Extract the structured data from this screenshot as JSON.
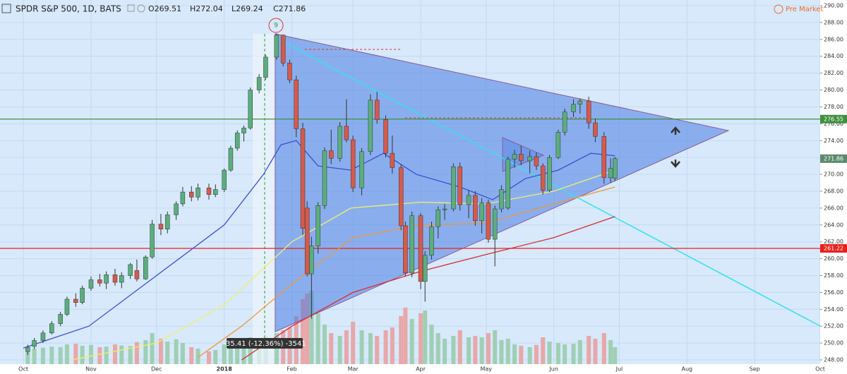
{
  "chart_data": {
    "type": "candlestick",
    "title": "SPDR S&P 500, 1D, BATS",
    "ohlc_labels": [
      "O269.51",
      "H272.04",
      "L269.24",
      "C271.86"
    ],
    "session": "Pre Market",
    "peak_marker": "9",
    "measure_label": "-35.41 (-12.36%) -3541",
    "up_color": "#5bae7e",
    "down_color": "#d75a4a",
    "volume_up_color": "#9fcfb4",
    "volume_down_color": "#e8a7a8",
    "volume_ylim": [
      0,
      400
    ],
    "grid": true,
    "xlim": [
      -10.7,
      365
    ],
    "xticks": [
      {
        "value": 0,
        "label": "Oct"
      },
      {
        "value": 31,
        "label": "Nov"
      },
      {
        "value": 61,
        "label": "Dec"
      },
      {
        "value": 92,
        "label": "2018"
      },
      {
        "value": 123,
        "label": "Feb"
      },
      {
        "value": 151,
        "label": "Mar"
      },
      {
        "value": 182,
        "label": "Apr"
      },
      {
        "value": 212,
        "label": "May"
      },
      {
        "value": 243,
        "label": "Jun"
      },
      {
        "value": 273,
        "label": "Jul"
      },
      {
        "value": 304,
        "label": "Aug"
      },
      {
        "value": 335,
        "label": "Sep"
      },
      {
        "value": 365,
        "label": "Oct"
      }
    ],
    "ylim": [
      247.5,
      290.67
    ],
    "yticks": [
      {
        "value": 248,
        "label": "248.00"
      },
      {
        "value": 250,
        "label": "250.00"
      },
      {
        "value": 252,
        "label": "252.00"
      },
      {
        "value": 254,
        "label": "254.00"
      },
      {
        "value": 256,
        "label": "256.00"
      },
      {
        "value": 258,
        "label": "258.00"
      },
      {
        "value": 260,
        "label": "260.00"
      },
      {
        "value": 262,
        "label": "262.00"
      },
      {
        "value": 264,
        "label": "264.00"
      },
      {
        "value": 266,
        "label": "266.00"
      },
      {
        "value": 268,
        "label": "268.00"
      },
      {
        "value": 270,
        "label": "270.00"
      },
      {
        "value": 272,
        "label": "272.00"
      },
      {
        "value": 274,
        "label": "274.00"
      },
      {
        "value": 276,
        "label": "276.00"
      },
      {
        "value": 278,
        "label": "278.00"
      },
      {
        "value": 280,
        "label": "280.00"
      },
      {
        "value": 282,
        "label": "282.00"
      },
      {
        "value": 284,
        "label": "284.00"
      },
      {
        "value": 286,
        "label": "286.00"
      },
      {
        "value": 288,
        "label": "288.00"
      },
      {
        "value": 290,
        "label": "290.00"
      }
    ],
    "price_lines": [
      {
        "value": 276.55,
        "color": "#3f8f3f"
      },
      {
        "value": 261.22,
        "color": "#e8211c"
      }
    ],
    "last_price": {
      "value": 271.86,
      "color": "#5c8a6e"
    },
    "candles": [
      [
        2,
        249.0,
        249.8,
        248.6,
        249.5,
        60
      ],
      [
        5,
        249.6,
        250.6,
        249.3,
        250.3,
        55
      ],
      [
        9,
        250.3,
        251.5,
        250.0,
        251.2,
        58
      ],
      [
        13,
        251.2,
        252.6,
        251.0,
        252.3,
        62
      ],
      [
        17,
        252.3,
        253.7,
        252.0,
        253.4,
        60
      ],
      [
        20,
        253.4,
        255.5,
        253.2,
        255.2,
        70
      ],
      [
        24,
        255.2,
        255.9,
        254.3,
        254.8,
        72
      ],
      [
        27,
        254.8,
        256.8,
        254.6,
        256.5,
        65
      ],
      [
        31,
        256.5,
        257.9,
        256.2,
        257.5,
        68
      ],
      [
        35,
        257.5,
        258.2,
        256.7,
        257.1,
        60
      ],
      [
        38,
        257.1,
        258.5,
        256.4,
        258.1,
        62
      ],
      [
        42,
        258.1,
        258.8,
        256.8,
        257.2,
        70
      ],
      [
        45,
        257.2,
        258.4,
        256.5,
        258.0,
        66
      ],
      [
        49,
        258.0,
        259.5,
        257.6,
        259.3,
        64
      ],
      [
        52,
        258.6,
        259.9,
        257.3,
        257.6,
        78
      ],
      [
        56,
        257.6,
        260.4,
        257.5,
        260.2,
        85
      ],
      [
        59,
        260.2,
        264.6,
        260.0,
        264.1,
        110
      ],
      [
        63,
        264.1,
        265.3,
        262.8,
        263.5,
        90
      ],
      [
        66,
        263.5,
        265.6,
        263.0,
        265.2,
        80
      ],
      [
        70,
        265.2,
        266.8,
        264.6,
        266.5,
        88
      ],
      [
        73,
        266.5,
        268.5,
        266.2,
        267.9,
        75
      ],
      [
        77,
        267.9,
        268.6,
        266.8,
        267.3,
        60
      ],
      [
        80,
        267.3,
        268.9,
        266.9,
        268.4,
        55
      ],
      [
        85,
        268.4,
        268.9,
        267.0,
        267.6,
        45
      ],
      [
        88,
        267.6,
        268.8,
        267.3,
        268.2,
        50
      ],
      [
        92,
        268.2,
        270.7,
        267.9,
        270.5,
        70
      ],
      [
        95,
        270.5,
        273.4,
        270.3,
        273.1,
        75
      ],
      [
        98,
        273.1,
        275.2,
        272.8,
        274.9,
        72
      ],
      [
        101,
        274.9,
        275.8,
        273.9,
        275.5,
        80
      ],
      [
        104,
        275.5,
        280.3,
        275.3,
        280.0,
        95
      ],
      [
        108,
        280.0,
        281.9,
        279.6,
        281.5,
        90
      ],
      [
        111,
        281.5,
        284.2,
        281.2,
        283.9,
        100
      ],
      [
        116,
        283.9,
        286.7,
        283.6,
        286.5,
        110
      ],
      [
        119,
        286.5,
        286.6,
        282.8,
        283.2,
        120
      ],
      [
        122,
        283.2,
        283.6,
        280.8,
        281.2,
        130
      ],
      [
        125,
        281.2,
        281.7,
        274.4,
        275.4,
        170
      ],
      [
        128,
        275.4,
        276.1,
        262.8,
        263.6,
        230
      ],
      [
        130,
        266.0,
        266.8,
        257.9,
        258.2,
        250
      ],
      [
        132,
        258.2,
        262.6,
        252.9,
        261.5,
        260
      ],
      [
        135,
        261.5,
        266.7,
        260.6,
        266.3,
        180
      ],
      [
        138,
        266.3,
        273.2,
        265.9,
        272.8,
        140
      ],
      [
        141,
        272.8,
        275.3,
        271.2,
        271.9,
        110
      ],
      [
        145,
        271.9,
        276.2,
        271.5,
        275.7,
        100
      ],
      [
        148,
        275.7,
        278.9,
        273.8,
        274.1,
        120
      ],
      [
        151,
        274.1,
        274.6,
        267.9,
        268.4,
        150
      ],
      [
        155,
        268.4,
        273.1,
        267.5,
        272.7,
        120
      ],
      [
        159,
        272.7,
        279.5,
        272.3,
        278.8,
        110
      ],
      [
        162,
        278.8,
        279.8,
        276.0,
        276.5,
        100
      ],
      [
        166,
        276.5,
        277.0,
        272.0,
        272.5,
        120
      ],
      [
        169,
        272.5,
        274.6,
        270.1,
        270.8,
        130
      ],
      [
        173,
        270.8,
        271.2,
        263.4,
        263.9,
        170
      ],
      [
        175,
        263.9,
        264.4,
        257.9,
        258.3,
        200
      ],
      [
        178,
        258.3,
        265.6,
        257.8,
        265.1,
        160
      ],
      [
        182,
        265.1,
        265.4,
        256.4,
        257.3,
        180
      ],
      [
        184,
        257.3,
        260.9,
        254.9,
        260.4,
        190
      ],
      [
        187,
        260.4,
        264.4,
        259.9,
        263.8,
        140
      ],
      [
        190,
        263.8,
        266.2,
        262.4,
        265.8,
        110
      ],
      [
        193,
        265.8,
        266.5,
        264.6,
        265.9,
        90
      ],
      [
        197,
        265.9,
        271.3,
        265.6,
        270.9,
        100
      ],
      [
        200,
        270.9,
        271.4,
        265.7,
        266.4,
        120
      ],
      [
        204,
        266.4,
        268.1,
        264.8,
        267.5,
        95
      ],
      [
        207,
        267.5,
        268.0,
        263.9,
        264.5,
        100
      ],
      [
        210,
        264.5,
        267.2,
        263.0,
        266.6,
        95
      ],
      [
        213,
        266.6,
        267.0,
        261.9,
        262.3,
        110
      ],
      [
        216,
        262.3,
        266.3,
        259.1,
        265.9,
        120
      ],
      [
        219,
        265.9,
        268.7,
        265.5,
        268.2,
        85
      ],
      [
        222,
        266.0,
        272.1,
        265.8,
        271.8,
        90
      ],
      [
        225,
        271.8,
        272.9,
        270.8,
        272.4,
        70
      ],
      [
        228,
        272.4,
        273.4,
        271.1,
        271.6,
        65
      ],
      [
        232,
        271.6,
        272.8,
        270.1,
        272.1,
        60
      ],
      [
        235,
        272.1,
        272.6,
        270.5,
        271.0,
        68
      ],
      [
        238,
        271.0,
        271.3,
        267.6,
        268.1,
        95
      ],
      [
        241,
        268.1,
        272.3,
        267.9,
        272.0,
        80
      ],
      [
        245,
        272.0,
        275.3,
        271.8,
        275.0,
        75
      ],
      [
        248,
        275.0,
        277.8,
        274.6,
        277.4,
        70
      ],
      [
        252,
        277.4,
        278.9,
        276.8,
        278.3,
        72
      ],
      [
        255,
        278.3,
        279.0,
        277.2,
        278.7,
        85
      ],
      [
        259,
        278.7,
        279.2,
        275.4,
        276.1,
        100
      ],
      [
        262,
        276.1,
        276.6,
        273.8,
        274.5,
        90
      ],
      [
        266,
        274.5,
        275.0,
        268.9,
        269.6,
        110
      ],
      [
        269,
        269.6,
        271.9,
        269.0,
        270.7,
        85
      ],
      [
        271,
        269.51,
        272.04,
        269.24,
        271.86,
        60
      ]
    ],
    "overlays": [
      {
        "color": "#3b4fd1",
        "x": [
          0,
          30,
          61,
          92,
          110,
          118,
          125,
          135,
          150,
          165,
          180,
          200,
          215,
          230,
          245,
          260,
          271
        ],
        "values": [
          249.4,
          252,
          258,
          264,
          270,
          273.5,
          274,
          271,
          270.5,
          272.5,
          270,
          268.5,
          267,
          269.5,
          270.5,
          272.5,
          272.2
        ]
      },
      {
        "color": "#f2ef6b",
        "x": [
          22,
          61,
          92,
          123,
          150,
          182,
          212,
          243,
          271
        ],
        "values": [
          248,
          250,
          254.5,
          262,
          266,
          266.7,
          266.5,
          268,
          270.5
        ]
      },
      {
        "color": "#f0963c",
        "x": [
          80,
          100,
          123,
          151,
          182,
          212,
          243,
          271
        ],
        "values": [
          248.3,
          252,
          257,
          262.5,
          264,
          264.2,
          266.5,
          268.5
        ]
      },
      {
        "color": "#d72e2e",
        "x": [
          100,
          123,
          151,
          182,
          212,
          243,
          271
        ],
        "values": [
          248,
          252,
          256,
          258.5,
          260.5,
          262.5,
          265
        ]
      }
    ]
  }
}
